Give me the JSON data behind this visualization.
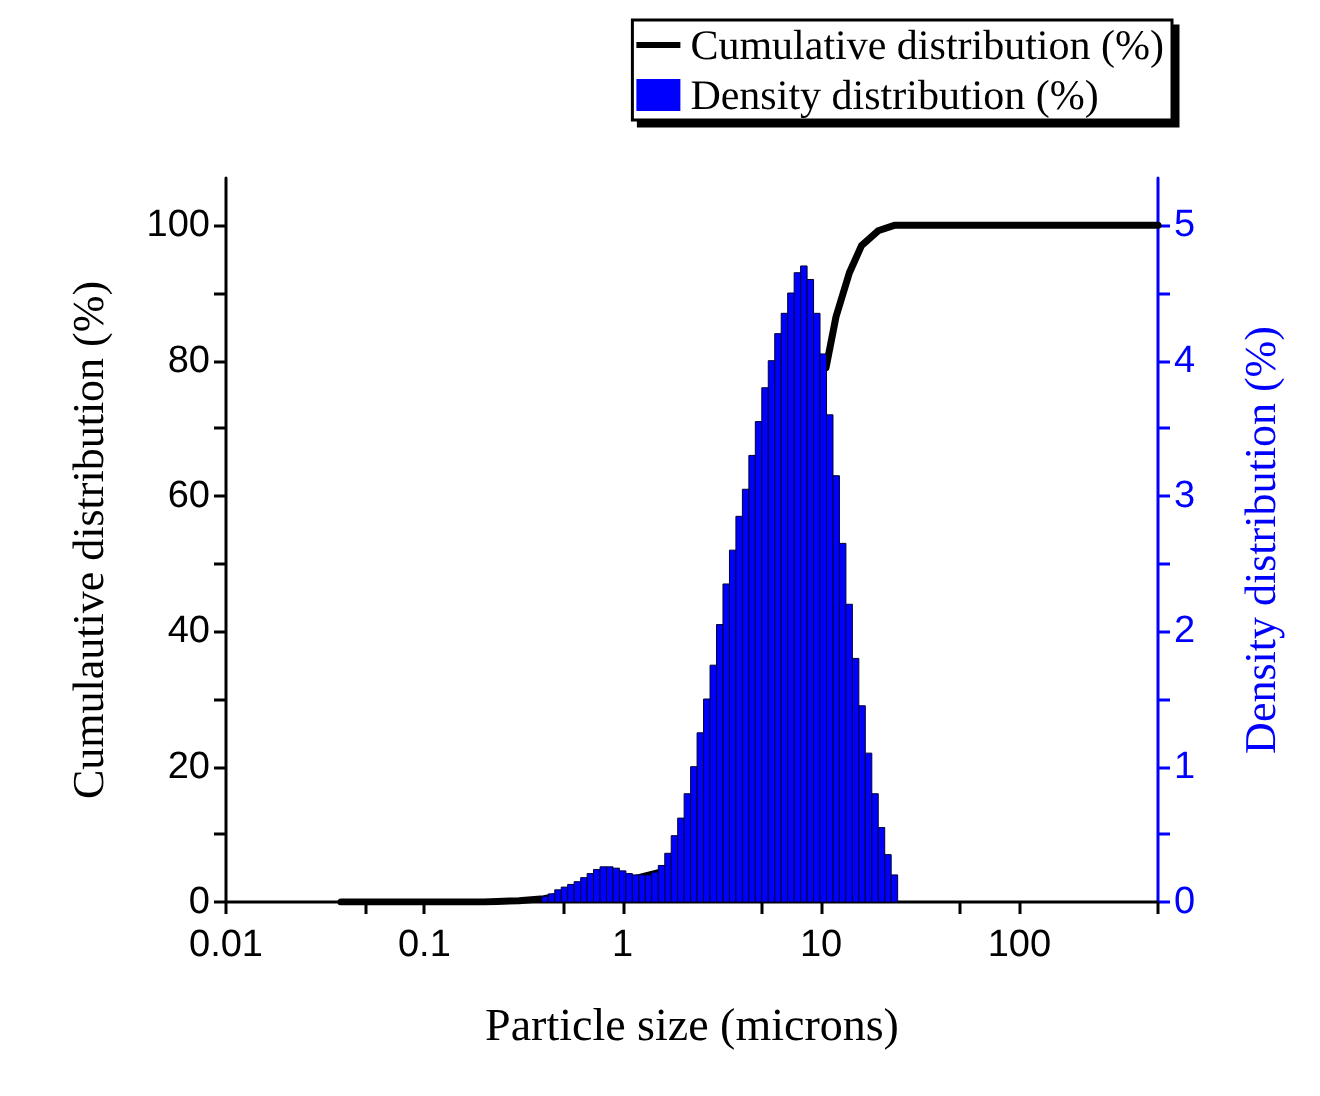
{
  "chart_data": {
    "type": "histogram",
    "xlabel": "Particle size (microns)",
    "ylabel": "Cumulautive distribution (%)",
    "y2label": "Density distribution (%)",
    "log": "x",
    "grid": false,
    "legend": "top right",
    "xlim": [
      0.01,
      500
    ],
    "xticks": [
      0.01,
      {
        "value": 0.05,
        "label": null
      },
      0.1,
      {
        "value": 0.5,
        "label": null
      },
      1,
      {
        "value": 5,
        "label": null
      },
      10,
      {
        "value": 50,
        "label": null
      },
      100,
      {
        "value": 500,
        "label": null
      }
    ],
    "ylim": [
      0,
      107
    ],
    "yticks": [
      0,
      {
        "value": 10,
        "label": null
      },
      20,
      {
        "value": 30,
        "label": null
      },
      40,
      {
        "value": 50,
        "label": null
      },
      60,
      {
        "value": 70,
        "label": null
      },
      80,
      {
        "value": 90,
        "label": null
      },
      100
    ],
    "y2lim": [
      0,
      5.35
    ],
    "y2ticks": [
      0,
      {
        "value": 0.5,
        "label": null
      },
      1,
      {
        "value": 1.5,
        "label": null
      },
      2,
      {
        "value": 2.5,
        "label": null
      },
      3,
      {
        "value": 3.5,
        "label": null
      },
      4,
      {
        "value": 4.5,
        "label": null
      },
      5
    ],
    "series": [
      {
        "name": "Cumulative distribution (%)",
        "type": "line",
        "color": "#000000",
        "x": [
          0.038,
          0.1,
          0.2,
          0.3,
          0.4,
          0.5,
          0.7,
          1,
          1.5,
          2,
          9.6,
          10.6,
          11.9,
          13.9,
          16,
          19.4,
          23.4,
          500
        ],
        "values": [
          0,
          0,
          0,
          0.2,
          0.5,
          1,
          2,
          3,
          4.3,
          null,
          null,
          79,
          86.5,
          93,
          97,
          99.2,
          100,
          100
        ]
      },
      {
        "name": "Density distribution (%)",
        "type": "histogram",
        "axis": "y2",
        "color": "#0000ff",
        "bins": [
          0.391,
          0.4216,
          0.4545,
          0.49,
          0.528,
          0.569,
          0.614,
          0.662,
          0.713,
          0.769,
          0.829,
          0.894,
          0.963,
          1.038,
          1.119,
          1.207,
          1.301,
          1.402,
          1.512,
          1.63,
          1.757,
          1.894,
          2.041,
          2.201,
          2.372,
          2.557,
          2.757,
          2.972,
          3.204,
          3.454,
          3.723,
          4.014,
          4.327,
          4.664,
          5.028,
          5.42,
          5.843,
          6.299,
          6.79,
          7.32,
          7.891,
          8.506,
          9.17,
          9.885,
          10.66,
          11.49,
          12.38,
          13.35,
          14.39,
          15.51,
          16.72,
          18.03,
          19.43,
          20.95,
          22.58,
          24.34
        ],
        "values": [
          0.04,
          0.06,
          0.09,
          0.11,
          0.13,
          0.15,
          0.18,
          0.21,
          0.24,
          0.26,
          0.26,
          0.25,
          0.23,
          0.21,
          0.2,
          0.2,
          0.2,
          0.22,
          0.27,
          0.36,
          0.49,
          0.62,
          0.8,
          1.0,
          1.25,
          1.5,
          1.75,
          2.05,
          2.35,
          2.6,
          2.85,
          3.05,
          3.3,
          3.55,
          3.8,
          4.0,
          4.2,
          4.35,
          4.5,
          4.65,
          4.7,
          4.6,
          4.35,
          4.05,
          3.6,
          3.15,
          2.65,
          2.2,
          1.8,
          1.45,
          1.1,
          0.8,
          0.55,
          0.35,
          0.2
        ]
      }
    ]
  }
}
